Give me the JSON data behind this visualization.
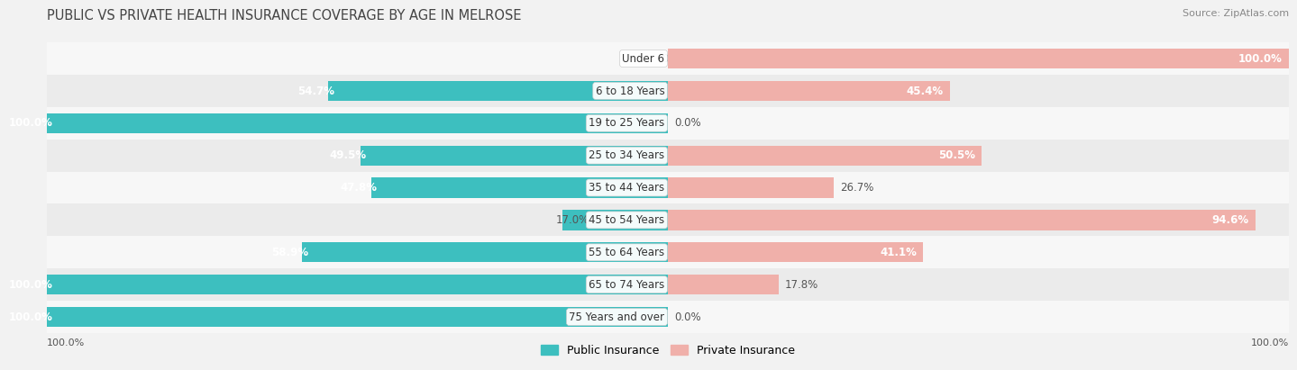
{
  "title": "PUBLIC VS PRIVATE HEALTH INSURANCE COVERAGE BY AGE IN MELROSE",
  "source": "Source: ZipAtlas.com",
  "categories": [
    "Under 6",
    "6 to 18 Years",
    "19 to 25 Years",
    "25 to 34 Years",
    "35 to 44 Years",
    "45 to 54 Years",
    "55 to 64 Years",
    "65 to 74 Years",
    "75 Years and over"
  ],
  "public_values": [
    0.0,
    54.7,
    100.0,
    49.5,
    47.8,
    17.0,
    58.9,
    100.0,
    100.0
  ],
  "private_values": [
    100.0,
    45.4,
    0.0,
    50.5,
    26.7,
    94.6,
    41.1,
    17.8,
    0.0
  ],
  "public_color": "#3dbfbf",
  "private_color": "#e8847a",
  "private_color_light": "#f0b0aa",
  "bg_color": "#f2f2f2",
  "row_bg_light": "#f7f7f7",
  "row_bg_dark": "#ebebeb",
  "bar_height": 0.62,
  "title_fontsize": 10.5,
  "label_fontsize": 8.5,
  "value_fontsize": 8.5,
  "legend_fontsize": 9,
  "source_fontsize": 8,
  "axis_label_fontsize": 8
}
